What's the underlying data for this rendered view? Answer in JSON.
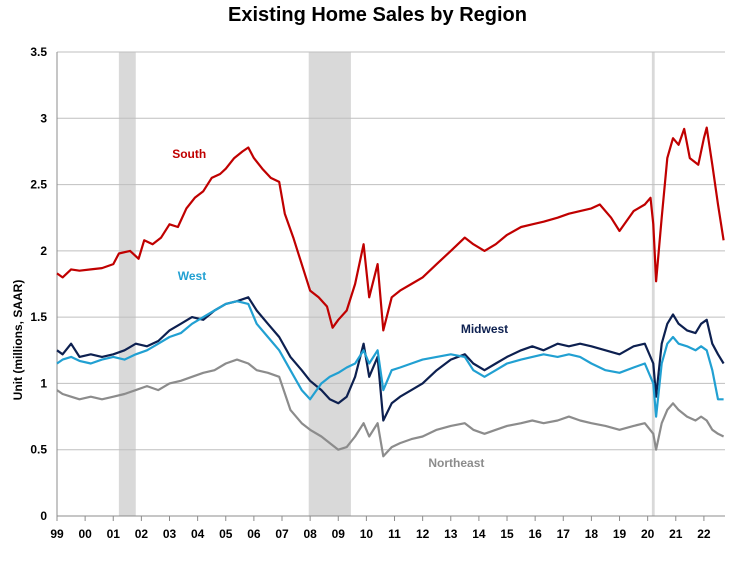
{
  "title": "Existing Home Sales by Region",
  "chart_data": {
    "type": "line",
    "title": "Existing Home Sales by Region",
    "xlabel": "",
    "ylabel": "Unit (millions, SAAR)",
    "ylim": [
      0,
      3.5
    ],
    "xlim": [
      1999.0,
      2022.75
    ],
    "y_ticks": [
      "0",
      "0.5",
      "1",
      "1.5",
      "2",
      "2.5",
      "3",
      "3.5"
    ],
    "x_tick_labels": [
      "99",
      "00",
      "01",
      "02",
      "03",
      "04",
      "05",
      "06",
      "07",
      "08",
      "09",
      "10",
      "11",
      "12",
      "13",
      "14",
      "15",
      "16",
      "17",
      "18",
      "19",
      "20",
      "21",
      "22"
    ],
    "grid": "horizontal",
    "recession_shading": [
      [
        2001.2,
        2001.8
      ],
      [
        2007.95,
        2009.45
      ],
      [
        2020.15,
        2020.25
      ]
    ],
    "series": [
      {
        "name": "South",
        "color": "#c00000",
        "points": [
          [
            1999.0,
            1.83
          ],
          [
            1999.2,
            1.8
          ],
          [
            1999.5,
            1.86
          ],
          [
            1999.8,
            1.85
          ],
          [
            2000.2,
            1.86
          ],
          [
            2000.6,
            1.87
          ],
          [
            2001.0,
            1.9
          ],
          [
            2001.2,
            1.98
          ],
          [
            2001.6,
            2.0
          ],
          [
            2001.9,
            1.94
          ],
          [
            2002.1,
            2.08
          ],
          [
            2002.4,
            2.05
          ],
          [
            2002.7,
            2.1
          ],
          [
            2003.0,
            2.2
          ],
          [
            2003.3,
            2.18
          ],
          [
            2003.6,
            2.32
          ],
          [
            2003.9,
            2.4
          ],
          [
            2004.2,
            2.45
          ],
          [
            2004.5,
            2.55
          ],
          [
            2004.8,
            2.58
          ],
          [
            2005.0,
            2.62
          ],
          [
            2005.3,
            2.7
          ],
          [
            2005.6,
            2.75
          ],
          [
            2005.8,
            2.78
          ],
          [
            2006.0,
            2.7
          ],
          [
            2006.3,
            2.62
          ],
          [
            2006.6,
            2.55
          ],
          [
            2006.9,
            2.52
          ],
          [
            2007.1,
            2.28
          ],
          [
            2007.4,
            2.1
          ],
          [
            2007.7,
            1.9
          ],
          [
            2008.0,
            1.7
          ],
          [
            2008.3,
            1.65
          ],
          [
            2008.6,
            1.58
          ],
          [
            2008.8,
            1.42
          ],
          [
            2009.0,
            1.48
          ],
          [
            2009.3,
            1.55
          ],
          [
            2009.6,
            1.75
          ],
          [
            2009.9,
            2.05
          ],
          [
            2010.1,
            1.65
          ],
          [
            2010.4,
            1.9
          ],
          [
            2010.6,
            1.4
          ],
          [
            2010.9,
            1.65
          ],
          [
            2011.2,
            1.7
          ],
          [
            2011.6,
            1.75
          ],
          [
            2012.0,
            1.8
          ],
          [
            2012.5,
            1.9
          ],
          [
            2013.0,
            2.0
          ],
          [
            2013.5,
            2.1
          ],
          [
            2013.8,
            2.05
          ],
          [
            2014.2,
            2.0
          ],
          [
            2014.6,
            2.05
          ],
          [
            2015.0,
            2.12
          ],
          [
            2015.5,
            2.18
          ],
          [
            2015.9,
            2.2
          ],
          [
            2016.3,
            2.22
          ],
          [
            2016.8,
            2.25
          ],
          [
            2017.2,
            2.28
          ],
          [
            2017.6,
            2.3
          ],
          [
            2018.0,
            2.32
          ],
          [
            2018.3,
            2.35
          ],
          [
            2018.7,
            2.25
          ],
          [
            2019.0,
            2.15
          ],
          [
            2019.5,
            2.3
          ],
          [
            2019.9,
            2.35
          ],
          [
            2020.1,
            2.4
          ],
          [
            2020.2,
            2.2
          ],
          [
            2020.3,
            1.77
          ],
          [
            2020.5,
            2.25
          ],
          [
            2020.7,
            2.7
          ],
          [
            2020.9,
            2.85
          ],
          [
            2021.1,
            2.8
          ],
          [
            2021.3,
            2.92
          ],
          [
            2021.5,
            2.7
          ],
          [
            2021.8,
            2.65
          ],
          [
            2022.0,
            2.85
          ],
          [
            2022.1,
            2.93
          ],
          [
            2022.3,
            2.65
          ],
          [
            2022.5,
            2.35
          ],
          [
            2022.7,
            2.08
          ]
        ]
      },
      {
        "name": "Midwest",
        "color": "#0d2050",
        "points": [
          [
            1999.0,
            1.25
          ],
          [
            1999.2,
            1.22
          ],
          [
            1999.5,
            1.3
          ],
          [
            1999.8,
            1.2
          ],
          [
            2000.2,
            1.22
          ],
          [
            2000.6,
            1.2
          ],
          [
            2001.0,
            1.22
          ],
          [
            2001.4,
            1.25
          ],
          [
            2001.8,
            1.3
          ],
          [
            2002.2,
            1.28
          ],
          [
            2002.6,
            1.32
          ],
          [
            2003.0,
            1.4
          ],
          [
            2003.4,
            1.45
          ],
          [
            2003.8,
            1.5
          ],
          [
            2004.2,
            1.48
          ],
          [
            2004.6,
            1.55
          ],
          [
            2005.0,
            1.6
          ],
          [
            2005.4,
            1.62
          ],
          [
            2005.8,
            1.65
          ],
          [
            2006.1,
            1.55
          ],
          [
            2006.5,
            1.45
          ],
          [
            2006.9,
            1.35
          ],
          [
            2007.3,
            1.2
          ],
          [
            2007.7,
            1.1
          ],
          [
            2008.0,
            1.02
          ],
          [
            2008.4,
            0.95
          ],
          [
            2008.7,
            0.88
          ],
          [
            2009.0,
            0.85
          ],
          [
            2009.3,
            0.9
          ],
          [
            2009.6,
            1.05
          ],
          [
            2009.9,
            1.3
          ],
          [
            2010.1,
            1.05
          ],
          [
            2010.4,
            1.2
          ],
          [
            2010.6,
            0.72
          ],
          [
            2010.9,
            0.85
          ],
          [
            2011.2,
            0.9
          ],
          [
            2011.6,
            0.95
          ],
          [
            2012.0,
            1.0
          ],
          [
            2012.5,
            1.1
          ],
          [
            2013.0,
            1.18
          ],
          [
            2013.5,
            1.22
          ],
          [
            2013.8,
            1.15
          ],
          [
            2014.2,
            1.1
          ],
          [
            2014.6,
            1.15
          ],
          [
            2015.0,
            1.2
          ],
          [
            2015.5,
            1.25
          ],
          [
            2015.9,
            1.28
          ],
          [
            2016.3,
            1.25
          ],
          [
            2016.8,
            1.3
          ],
          [
            2017.2,
            1.28
          ],
          [
            2017.6,
            1.3
          ],
          [
            2018.0,
            1.28
          ],
          [
            2018.5,
            1.25
          ],
          [
            2019.0,
            1.22
          ],
          [
            2019.5,
            1.28
          ],
          [
            2019.9,
            1.3
          ],
          [
            2020.2,
            1.15
          ],
          [
            2020.3,
            0.9
          ],
          [
            2020.5,
            1.3
          ],
          [
            2020.7,
            1.45
          ],
          [
            2020.9,
            1.52
          ],
          [
            2021.1,
            1.45
          ],
          [
            2021.4,
            1.4
          ],
          [
            2021.7,
            1.38
          ],
          [
            2021.9,
            1.45
          ],
          [
            2022.1,
            1.48
          ],
          [
            2022.3,
            1.3
          ],
          [
            2022.5,
            1.22
          ],
          [
            2022.7,
            1.15
          ]
        ]
      },
      {
        "name": "West",
        "color": "#21a0d2",
        "points": [
          [
            1999.0,
            1.15
          ],
          [
            1999.2,
            1.18
          ],
          [
            1999.5,
            1.2
          ],
          [
            1999.8,
            1.17
          ],
          [
            2000.2,
            1.15
          ],
          [
            2000.6,
            1.18
          ],
          [
            2001.0,
            1.2
          ],
          [
            2001.4,
            1.18
          ],
          [
            2001.8,
            1.22
          ],
          [
            2002.2,
            1.25
          ],
          [
            2002.6,
            1.3
          ],
          [
            2003.0,
            1.35
          ],
          [
            2003.4,
            1.38
          ],
          [
            2003.8,
            1.45
          ],
          [
            2004.2,
            1.5
          ],
          [
            2004.6,
            1.55
          ],
          [
            2005.0,
            1.6
          ],
          [
            2005.4,
            1.62
          ],
          [
            2005.8,
            1.6
          ],
          [
            2006.1,
            1.45
          ],
          [
            2006.5,
            1.35
          ],
          [
            2006.9,
            1.25
          ],
          [
            2007.3,
            1.1
          ],
          [
            2007.7,
            0.95
          ],
          [
            2008.0,
            0.88
          ],
          [
            2008.4,
            1.0
          ],
          [
            2008.7,
            1.05
          ],
          [
            2009.0,
            1.08
          ],
          [
            2009.3,
            1.12
          ],
          [
            2009.6,
            1.15
          ],
          [
            2009.9,
            1.25
          ],
          [
            2010.1,
            1.15
          ],
          [
            2010.4,
            1.25
          ],
          [
            2010.6,
            0.95
          ],
          [
            2010.9,
            1.1
          ],
          [
            2011.2,
            1.12
          ],
          [
            2011.6,
            1.15
          ],
          [
            2012.0,
            1.18
          ],
          [
            2012.5,
            1.2
          ],
          [
            2013.0,
            1.22
          ],
          [
            2013.5,
            1.2
          ],
          [
            2013.8,
            1.1
          ],
          [
            2014.2,
            1.05
          ],
          [
            2014.6,
            1.1
          ],
          [
            2015.0,
            1.15
          ],
          [
            2015.5,
            1.18
          ],
          [
            2015.9,
            1.2
          ],
          [
            2016.3,
            1.22
          ],
          [
            2016.8,
            1.2
          ],
          [
            2017.2,
            1.22
          ],
          [
            2017.6,
            1.2
          ],
          [
            2018.0,
            1.15
          ],
          [
            2018.5,
            1.1
          ],
          [
            2019.0,
            1.08
          ],
          [
            2019.5,
            1.12
          ],
          [
            2019.9,
            1.15
          ],
          [
            2020.2,
            1.0
          ],
          [
            2020.3,
            0.75
          ],
          [
            2020.5,
            1.15
          ],
          [
            2020.7,
            1.3
          ],
          [
            2020.9,
            1.35
          ],
          [
            2021.1,
            1.3
          ],
          [
            2021.4,
            1.28
          ],
          [
            2021.7,
            1.25
          ],
          [
            2021.9,
            1.28
          ],
          [
            2022.1,
            1.25
          ],
          [
            2022.3,
            1.1
          ],
          [
            2022.5,
            0.88
          ],
          [
            2022.7,
            0.88
          ]
        ]
      },
      {
        "name": "Northeast",
        "color": "#8c8c8c",
        "points": [
          [
            1999.0,
            0.95
          ],
          [
            1999.2,
            0.92
          ],
          [
            1999.5,
            0.9
          ],
          [
            1999.8,
            0.88
          ],
          [
            2000.2,
            0.9
          ],
          [
            2000.6,
            0.88
          ],
          [
            2001.0,
            0.9
          ],
          [
            2001.4,
            0.92
          ],
          [
            2001.8,
            0.95
          ],
          [
            2002.2,
            0.98
          ],
          [
            2002.6,
            0.95
          ],
          [
            2003.0,
            1.0
          ],
          [
            2003.4,
            1.02
          ],
          [
            2003.8,
            1.05
          ],
          [
            2004.2,
            1.08
          ],
          [
            2004.6,
            1.1
          ],
          [
            2005.0,
            1.15
          ],
          [
            2005.4,
            1.18
          ],
          [
            2005.8,
            1.15
          ],
          [
            2006.1,
            1.1
          ],
          [
            2006.5,
            1.08
          ],
          [
            2006.9,
            1.05
          ],
          [
            2007.3,
            0.8
          ],
          [
            2007.7,
            0.7
          ],
          [
            2008.0,
            0.65
          ],
          [
            2008.4,
            0.6
          ],
          [
            2008.7,
            0.55
          ],
          [
            2009.0,
            0.5
          ],
          [
            2009.3,
            0.52
          ],
          [
            2009.6,
            0.6
          ],
          [
            2009.9,
            0.7
          ],
          [
            2010.1,
            0.6
          ],
          [
            2010.4,
            0.7
          ],
          [
            2010.6,
            0.45
          ],
          [
            2010.9,
            0.52
          ],
          [
            2011.2,
            0.55
          ],
          [
            2011.6,
            0.58
          ],
          [
            2012.0,
            0.6
          ],
          [
            2012.5,
            0.65
          ],
          [
            2013.0,
            0.68
          ],
          [
            2013.5,
            0.7
          ],
          [
            2013.8,
            0.65
          ],
          [
            2014.2,
            0.62
          ],
          [
            2014.6,
            0.65
          ],
          [
            2015.0,
            0.68
          ],
          [
            2015.5,
            0.7
          ],
          [
            2015.9,
            0.72
          ],
          [
            2016.3,
            0.7
          ],
          [
            2016.8,
            0.72
          ],
          [
            2017.2,
            0.75
          ],
          [
            2017.6,
            0.72
          ],
          [
            2018.0,
            0.7
          ],
          [
            2018.5,
            0.68
          ],
          [
            2019.0,
            0.65
          ],
          [
            2019.5,
            0.68
          ],
          [
            2019.9,
            0.7
          ],
          [
            2020.2,
            0.62
          ],
          [
            2020.3,
            0.5
          ],
          [
            2020.5,
            0.7
          ],
          [
            2020.7,
            0.8
          ],
          [
            2020.9,
            0.85
          ],
          [
            2021.1,
            0.8
          ],
          [
            2021.4,
            0.75
          ],
          [
            2021.7,
            0.72
          ],
          [
            2021.9,
            0.75
          ],
          [
            2022.1,
            0.72
          ],
          [
            2022.3,
            0.65
          ],
          [
            2022.5,
            0.62
          ],
          [
            2022.7,
            0.6
          ]
        ]
      }
    ]
  }
}
